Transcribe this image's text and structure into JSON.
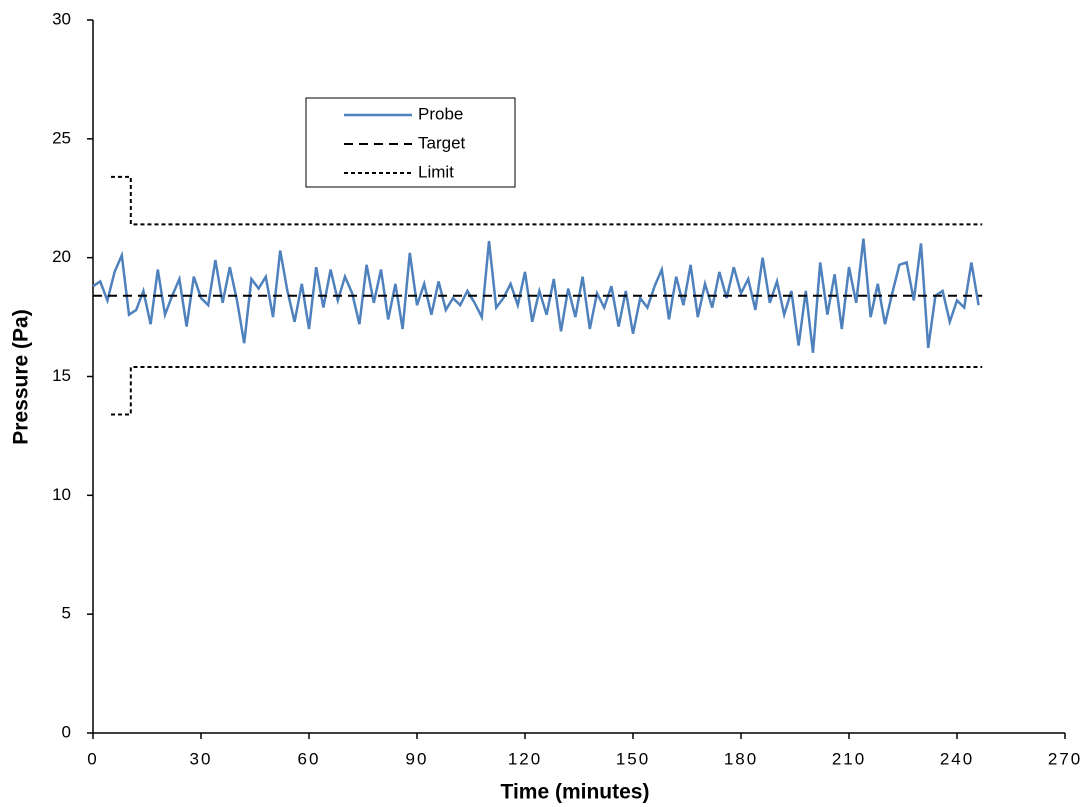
{
  "chart_data": {
    "type": "line",
    "x_label": "Time (minutes)",
    "y_label": "Pressure (Pa)",
    "xlim": [
      0,
      270
    ],
    "xticks": [
      0,
      30,
      60,
      90,
      120,
      150,
      180,
      210,
      240,
      270
    ],
    "ylim": [
      0,
      30
    ],
    "yticks": [
      0,
      5,
      10,
      15,
      20,
      25,
      30
    ],
    "grid": false,
    "series": [
      {
        "name": "Probe",
        "color": "#4f81bd",
        "style": "solid",
        "x": [
          0,
          2,
          4,
          6,
          8,
          10,
          12,
          14,
          16,
          18,
          20,
          22,
          24,
          26,
          28,
          30,
          32,
          34,
          36,
          38,
          40,
          42,
          44,
          46,
          48,
          50,
          52,
          54,
          56,
          58,
          60,
          62,
          64,
          66,
          68,
          70,
          72,
          74,
          76,
          78,
          80,
          82,
          84,
          86,
          88,
          90,
          92,
          94,
          96,
          98,
          100,
          102,
          104,
          106,
          108,
          110,
          112,
          114,
          116,
          118,
          120,
          122,
          124,
          126,
          128,
          130,
          132,
          134,
          136,
          138,
          140,
          142,
          144,
          146,
          148,
          150,
          152,
          154,
          156,
          158,
          160,
          162,
          164,
          166,
          168,
          170,
          172,
          174,
          176,
          178,
          180,
          182,
          184,
          186,
          188,
          190,
          192,
          194,
          196,
          198,
          200,
          202,
          204,
          206,
          208,
          210,
          212,
          214,
          216,
          218,
          220,
          222,
          224,
          226,
          228,
          230,
          232,
          234,
          236,
          238,
          240,
          242,
          244,
          246
        ],
        "values": [
          18.8,
          19.0,
          18.2,
          19.4,
          20.1,
          17.6,
          17.8,
          18.6,
          17.2,
          19.5,
          17.6,
          18.4,
          19.1,
          17.1,
          19.2,
          18.3,
          18.0,
          19.9,
          18.1,
          19.6,
          18.2,
          16.4,
          19.1,
          18.7,
          19.2,
          17.5,
          20.3,
          18.6,
          17.3,
          18.9,
          17.0,
          19.6,
          17.9,
          19.5,
          18.2,
          19.2,
          18.5,
          17.2,
          19.7,
          18.1,
          19.5,
          17.4,
          18.9,
          17.0,
          20.2,
          18.0,
          18.9,
          17.6,
          19.0,
          17.8,
          18.3,
          18.0,
          18.6,
          18.1,
          17.5,
          20.7,
          17.9,
          18.3,
          18.9,
          18.0,
          19.4,
          17.3,
          18.6,
          17.6,
          19.1,
          16.9,
          18.7,
          17.5,
          19.2,
          17.0,
          18.5,
          17.9,
          18.8,
          17.1,
          18.6,
          16.8,
          18.3,
          17.9,
          18.8,
          19.5,
          17.4,
          19.2,
          18.0,
          19.7,
          17.5,
          18.9,
          17.9,
          19.4,
          18.3,
          19.6,
          18.5,
          19.1,
          17.8,
          20.0,
          18.1,
          19.0,
          17.6,
          18.6,
          16.3,
          18.6,
          16.0,
          19.8,
          17.6,
          19.3,
          17.0,
          19.6,
          18.1,
          20.8,
          17.5,
          18.9,
          17.2,
          18.5,
          19.7,
          19.8,
          18.2,
          20.6,
          16.2,
          18.4,
          18.6,
          17.3,
          18.2,
          17.9,
          19.8,
          18.0
        ]
      },
      {
        "name": "Target",
        "color": "#000000",
        "style": "dashed",
        "x": [
          0,
          247
        ],
        "values": [
          18.4,
          18.4
        ]
      },
      {
        "name": "Limit",
        "color": "#000000",
        "style": "dotted",
        "x": [
          5,
          10.5,
          10.5,
          247
        ],
        "values": [
          23.4,
          23.4,
          21.4,
          21.4
        ],
        "lower": [
          13.4,
          13.4,
          15.4,
          15.4
        ]
      }
    ]
  }
}
